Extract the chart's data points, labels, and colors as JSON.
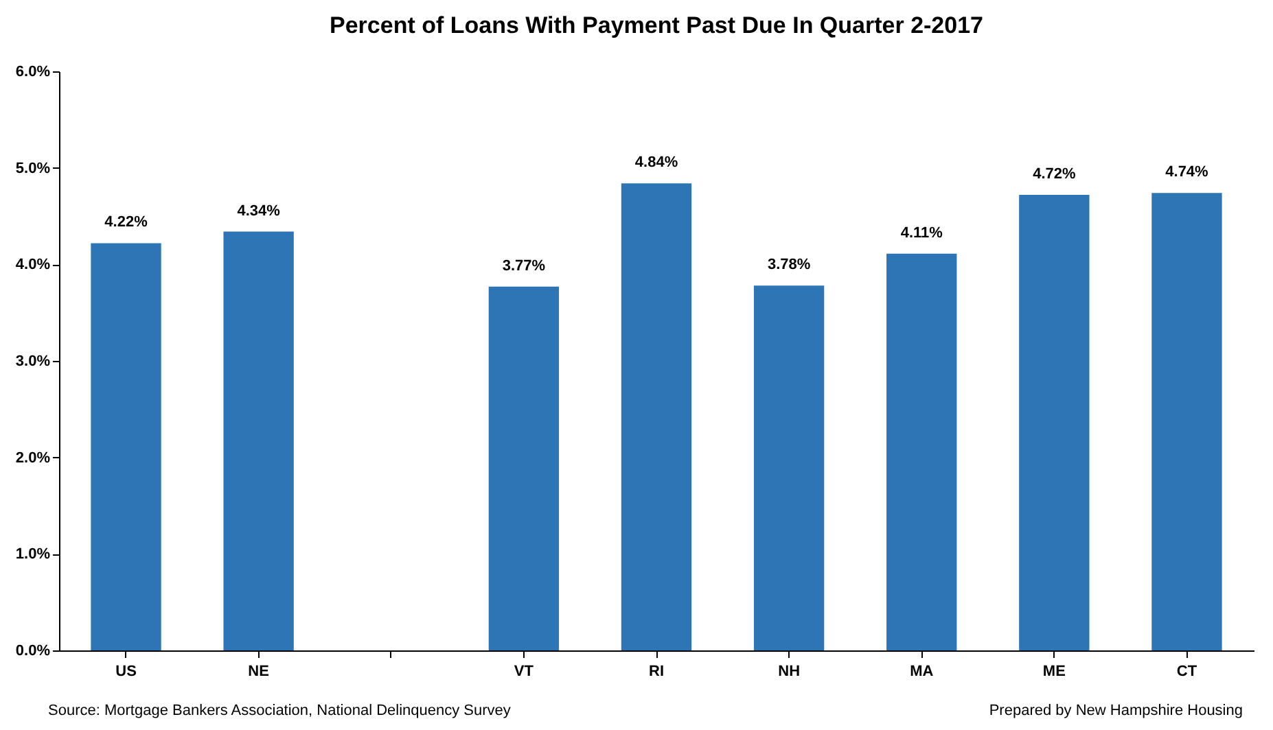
{
  "chart_data": {
    "type": "bar",
    "title": "Percent of Loans With Payment Past Due In Quarter 2-2017",
    "categories": [
      "US",
      "NE",
      null,
      "VT",
      "RI",
      "NH",
      "MA",
      "ME",
      "CT"
    ],
    "values": [
      4.22,
      4.34,
      null,
      3.77,
      4.84,
      3.78,
      4.11,
      4.72,
      4.74
    ],
    "value_labels": [
      "4.22%",
      "4.34%",
      null,
      "3.77%",
      "4.84%",
      "3.78%",
      "4.11%",
      "4.72%",
      "4.74%"
    ],
    "color": "#2e75b6",
    "ylim": [
      0,
      6
    ],
    "yticks": [
      {
        "value": 0,
        "label": "0.0%"
      },
      {
        "value": 1,
        "label": "1.0%"
      },
      {
        "value": 2,
        "label": "2.0%"
      },
      {
        "value": 3,
        "label": "3.0%"
      },
      {
        "value": 4,
        "label": "4.0%"
      },
      {
        "value": 5,
        "label": "5.0%"
      },
      {
        "value": 6,
        "label": "6.0%"
      }
    ],
    "annotations": [
      "Source: Mortgage Bankers Association, National Delinquency Survey",
      "Prepared by New Hampshire Housing"
    ]
  }
}
